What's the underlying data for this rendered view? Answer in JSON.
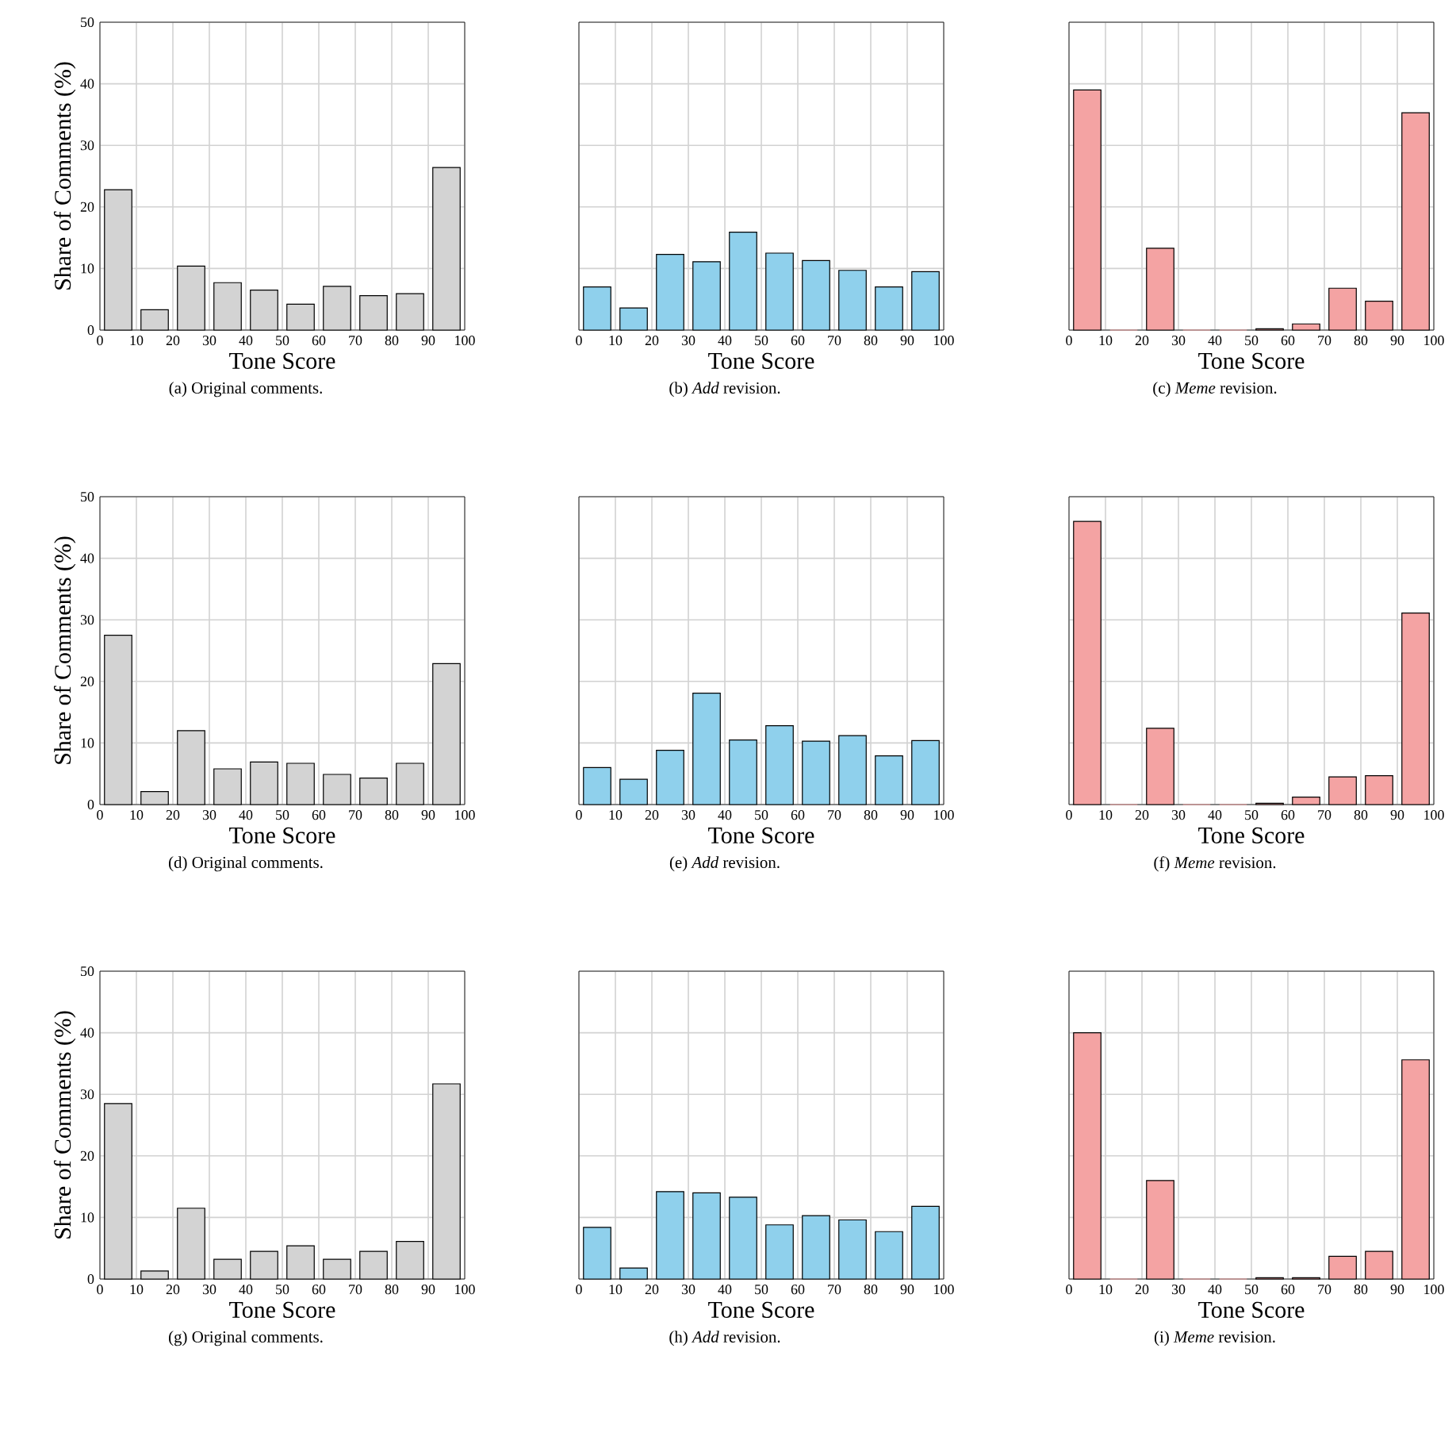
{
  "chart_data": [
    {
      "type": "histogram",
      "bins": [
        0,
        10,
        20,
        30,
        40,
        50,
        60,
        70,
        80,
        90,
        100
      ],
      "values": [
        22.8,
        3.3,
        10.4,
        7.7,
        6.5,
        4.2,
        7.1,
        5.6,
        5.9,
        26.4
      ],
      "color": "#d3d3d3",
      "xlim": [
        0,
        100
      ],
      "ylim": [
        0,
        50
      ],
      "xticks": [
        0,
        10,
        20,
        30,
        40,
        50,
        60,
        70,
        80,
        90,
        100
      ],
      "yticks": [
        0,
        10,
        20,
        30,
        40,
        50
      ],
      "grid": true,
      "xlabel": "Tone Score",
      "ylabel": "Share of Comments (%)",
      "annotations": [
        "(a) Original comments."
      ]
    },
    {
      "type": "histogram",
      "bins": [
        0,
        10,
        20,
        30,
        40,
        50,
        60,
        70,
        80,
        90,
        100
      ],
      "values": [
        7.0,
        3.6,
        12.3,
        11.1,
        15.9,
        12.5,
        11.3,
        9.7,
        7.0,
        9.5
      ],
      "color": "#8fd0ec",
      "xlim": [
        0,
        100
      ],
      "ylim": [
        0,
        50
      ],
      "xticks": [
        0,
        10,
        20,
        30,
        40,
        50,
        60,
        70,
        80,
        90,
        100
      ],
      "yticks": [
        0,
        10,
        20,
        30,
        40,
        50
      ],
      "grid": true,
      "xlabel": "Tone Score",
      "tick_labels": "x",
      "annotations": [
        "(b) *Add* revision."
      ]
    },
    {
      "type": "histogram",
      "bins": [
        0,
        10,
        20,
        30,
        40,
        50,
        60,
        70,
        80,
        90,
        100
      ],
      "values": [
        39.0,
        0,
        13.3,
        0,
        0,
        0.2,
        1.0,
        6.8,
        4.7,
        35.3
      ],
      "color": "#f4a3a3",
      "xlim": [
        0,
        100
      ],
      "ylim": [
        0,
        50
      ],
      "xticks": [
        0,
        10,
        20,
        30,
        40,
        50,
        60,
        70,
        80,
        90,
        100
      ],
      "yticks": [
        0,
        10,
        20,
        30,
        40,
        50
      ],
      "grid": true,
      "xlabel": "Tone Score",
      "tick_labels": "x",
      "annotations": [
        "(c) *Meme* revision."
      ]
    },
    {
      "type": "histogram",
      "bins": [
        0,
        10,
        20,
        30,
        40,
        50,
        60,
        70,
        80,
        90,
        100
      ],
      "values": [
        27.5,
        2.1,
        12.0,
        5.8,
        6.9,
        6.7,
        4.9,
        4.3,
        6.7,
        22.9
      ],
      "color": "#d3d3d3",
      "xlim": [
        0,
        100
      ],
      "ylim": [
        0,
        50
      ],
      "xticks": [
        0,
        10,
        20,
        30,
        40,
        50,
        60,
        70,
        80,
        90,
        100
      ],
      "yticks": [
        0,
        10,
        20,
        30,
        40,
        50
      ],
      "grid": true,
      "xlabel": "Tone Score",
      "ylabel": "Share of Comments (%)",
      "annotations": [
        "(d) Original comments."
      ]
    },
    {
      "type": "histogram",
      "bins": [
        0,
        10,
        20,
        30,
        40,
        50,
        60,
        70,
        80,
        90,
        100
      ],
      "values": [
        6.0,
        4.1,
        8.8,
        18.1,
        10.5,
        12.8,
        10.3,
        11.2,
        7.9,
        10.4
      ],
      "color": "#8fd0ec",
      "xlim": [
        0,
        100
      ],
      "ylim": [
        0,
        50
      ],
      "xticks": [
        0,
        10,
        20,
        30,
        40,
        50,
        60,
        70,
        80,
        90,
        100
      ],
      "yticks": [
        0,
        10,
        20,
        30,
        40,
        50
      ],
      "grid": true,
      "xlabel": "Tone Score",
      "tick_labels": "x",
      "annotations": [
        "(e) *Add* revision."
      ]
    },
    {
      "type": "histogram",
      "bins": [
        0,
        10,
        20,
        30,
        40,
        50,
        60,
        70,
        80,
        90,
        100
      ],
      "values": [
        46.0,
        0,
        12.4,
        0,
        0,
        0.2,
        1.2,
        4.5,
        4.7,
        31.1
      ],
      "color": "#f4a3a3",
      "xlim": [
        0,
        100
      ],
      "ylim": [
        0,
        50
      ],
      "xticks": [
        0,
        10,
        20,
        30,
        40,
        50,
        60,
        70,
        80,
        90,
        100
      ],
      "yticks": [
        0,
        10,
        20,
        30,
        40,
        50
      ],
      "grid": true,
      "xlabel": "Tone Score",
      "tick_labels": "x",
      "annotations": [
        "(f) *Meme* revision."
      ]
    },
    {
      "type": "histogram",
      "bins": [
        0,
        10,
        20,
        30,
        40,
        50,
        60,
        70,
        80,
        90,
        100
      ],
      "values": [
        28.5,
        1.3,
        11.5,
        3.2,
        4.5,
        5.4,
        3.2,
        4.5,
        6.1,
        31.7
      ],
      "color": "#d3d3d3",
      "xlim": [
        0,
        100
      ],
      "ylim": [
        0,
        50
      ],
      "xticks": [
        0,
        10,
        20,
        30,
        40,
        50,
        60,
        70,
        80,
        90,
        100
      ],
      "yticks": [
        0,
        10,
        20,
        30,
        40,
        50
      ],
      "grid": true,
      "xlabel": "Tone Score",
      "ylabel": "Share of Comments (%)",
      "annotations": [
        "(g) Original comments."
      ]
    },
    {
      "type": "histogram",
      "bins": [
        0,
        10,
        20,
        30,
        40,
        50,
        60,
        70,
        80,
        90,
        100
      ],
      "values": [
        8.4,
        1.8,
        14.2,
        14.0,
        13.3,
        8.8,
        10.3,
        9.6,
        7.7,
        11.8
      ],
      "color": "#8fd0ec",
      "xlim": [
        0,
        100
      ],
      "ylim": [
        0,
        50
      ],
      "xticks": [
        0,
        10,
        20,
        30,
        40,
        50,
        60,
        70,
        80,
        90,
        100
      ],
      "yticks": [
        0,
        10,
        20,
        30,
        40,
        50
      ],
      "grid": true,
      "xlabel": "Tone Score",
      "tick_labels": "x",
      "annotations": [
        "(h) *Add* revision."
      ]
    },
    {
      "type": "histogram",
      "bins": [
        0,
        10,
        20,
        30,
        40,
        50,
        60,
        70,
        80,
        90,
        100
      ],
      "values": [
        40.0,
        0,
        16.0,
        0,
        0,
        0.2,
        0.2,
        3.7,
        4.5,
        35.6
      ],
      "color": "#f4a3a3",
      "xlim": [
        0,
        100
      ],
      "ylim": [
        0,
        50
      ],
      "xticks": [
        0,
        10,
        20,
        30,
        40,
        50,
        60,
        70,
        80,
        90,
        100
      ],
      "yticks": [
        0,
        10,
        20,
        30,
        40,
        50
      ],
      "grid": true,
      "xlabel": "Tone Score",
      "tick_labels": "x",
      "annotations": [
        "(i) *Meme* revision."
      ]
    }
  ]
}
